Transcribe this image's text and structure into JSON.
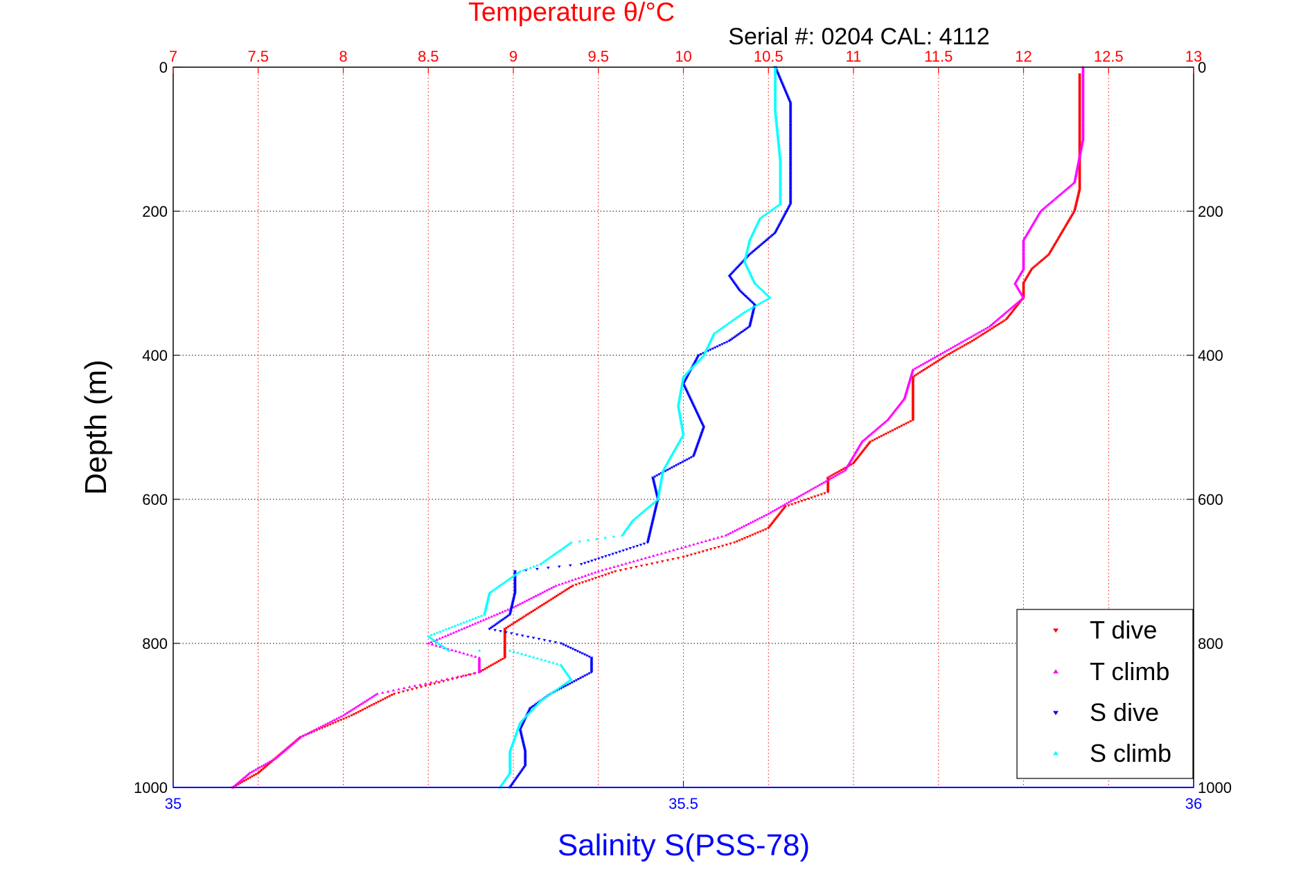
{
  "chart_data": {
    "type": "scatter",
    "title": "Temperature θ/°C",
    "subtitle": "Serial #: 0204  CAL: 4112",
    "ylabel": "Depth (m)",
    "xlabel": "Salinity S(PSS-78)",
    "ylim": [
      0,
      1000
    ],
    "y_reversed": true,
    "y_ticks": [
      0,
      200,
      400,
      600,
      800,
      1000
    ],
    "y_tick_labels": [
      "0",
      "200",
      "400",
      "600",
      "800",
      "1000"
    ],
    "temperature_axis": {
      "position": "top",
      "color": "#ff0000",
      "range": [
        7,
        13
      ],
      "ticks": [
        7,
        7.5,
        8,
        8.5,
        9,
        9.5,
        10,
        10.5,
        11,
        11.5,
        12,
        12.5,
        13
      ],
      "tick_labels": [
        "7",
        "7.5",
        "8",
        "8.5",
        "9",
        "9.5",
        "10",
        "10.5",
        "11",
        "11.5",
        "12",
        "12.5",
        "13"
      ]
    },
    "salinity_axis": {
      "position": "bottom",
      "color": "#0000ff",
      "range": [
        35,
        36
      ],
      "ticks": [
        35,
        35.5,
        36
      ],
      "tick_labels": [
        "35",
        "35.5",
        "36"
      ]
    },
    "grid": true,
    "legend_position": "bottom-right",
    "series": [
      {
        "name": "T dive",
        "axis": "temperature",
        "color": "#ff0000",
        "marker": "triangle-down",
        "points": [
          [
            12.33,
            10
          ],
          [
            12.33,
            100
          ],
          [
            12.33,
            170
          ],
          [
            12.3,
            200
          ],
          [
            12.25,
            220
          ],
          [
            12.15,
            260
          ],
          [
            12.05,
            280
          ],
          [
            12.0,
            300
          ],
          [
            12.0,
            320
          ],
          [
            11.9,
            350
          ],
          [
            11.7,
            380
          ],
          [
            11.55,
            400
          ],
          [
            11.35,
            430
          ],
          [
            11.35,
            490
          ],
          [
            11.1,
            520
          ],
          [
            11.0,
            550
          ],
          [
            10.85,
            570
          ],
          [
            10.85,
            590
          ],
          [
            10.6,
            610
          ],
          [
            10.5,
            640
          ],
          [
            10.3,
            660
          ],
          [
            10.0,
            680
          ],
          [
            9.6,
            700
          ],
          [
            9.35,
            720
          ],
          [
            9.15,
            750
          ],
          [
            8.95,
            780
          ],
          [
            8.95,
            800
          ],
          [
            8.95,
            820
          ],
          [
            8.8,
            840
          ],
          [
            8.3,
            870
          ],
          [
            8.05,
            900
          ],
          [
            7.75,
            930
          ],
          [
            7.6,
            960
          ],
          [
            7.5,
            980
          ],
          [
            7.35,
            1000
          ]
        ]
      },
      {
        "name": "T climb",
        "axis": "temperature",
        "color": "#ff00ff",
        "marker": "triangle-up",
        "points": [
          [
            12.35,
            0
          ],
          [
            12.35,
            100
          ],
          [
            12.3,
            160
          ],
          [
            12.1,
            200
          ],
          [
            12.0,
            240
          ],
          [
            12.0,
            280
          ],
          [
            11.95,
            300
          ],
          [
            12.0,
            320
          ],
          [
            11.8,
            360
          ],
          [
            11.5,
            400
          ],
          [
            11.35,
            420
          ],
          [
            11.3,
            460
          ],
          [
            11.2,
            490
          ],
          [
            11.05,
            520
          ],
          [
            10.95,
            560
          ],
          [
            10.8,
            580
          ],
          [
            10.5,
            620
          ],
          [
            10.25,
            650
          ],
          [
            9.8,
            680
          ],
          [
            9.5,
            700
          ],
          [
            9.25,
            720
          ],
          [
            9.0,
            750
          ],
          [
            8.6,
            790
          ],
          [
            8.5,
            800
          ],
          [
            8.8,
            820
          ],
          [
            8.8,
            840
          ],
          [
            8.2,
            870
          ],
          [
            8.0,
            900
          ],
          [
            7.75,
            930
          ],
          [
            7.6,
            960
          ],
          [
            7.45,
            980
          ],
          [
            7.35,
            1000
          ]
        ]
      },
      {
        "name": "S dive",
        "axis": "salinity",
        "color": "#0000ff",
        "marker": "triangle-down",
        "points": [
          [
            35.59,
            0
          ],
          [
            35.605,
            50
          ],
          [
            35.605,
            120
          ],
          [
            35.605,
            190
          ],
          [
            35.59,
            230
          ],
          [
            35.565,
            260
          ],
          [
            35.545,
            290
          ],
          [
            35.555,
            310
          ],
          [
            35.57,
            330
          ],
          [
            35.565,
            360
          ],
          [
            35.545,
            380
          ],
          [
            35.515,
            400
          ],
          [
            35.5,
            440
          ],
          [
            35.51,
            470
          ],
          [
            35.52,
            500
          ],
          [
            35.51,
            540
          ],
          [
            35.47,
            570
          ],
          [
            35.475,
            600
          ],
          [
            35.47,
            630
          ],
          [
            35.465,
            660
          ],
          [
            35.4,
            690
          ],
          [
            35.335,
            700
          ],
          [
            35.335,
            730
          ],
          [
            35.33,
            760
          ],
          [
            35.31,
            780
          ],
          [
            35.38,
            800
          ],
          [
            35.41,
            820
          ],
          [
            35.41,
            840
          ],
          [
            35.37,
            870
          ],
          [
            35.35,
            890
          ],
          [
            35.34,
            920
          ],
          [
            35.345,
            950
          ],
          [
            35.345,
            970
          ],
          [
            35.33,
            1000
          ]
        ]
      },
      {
        "name": "S climb",
        "axis": "salinity",
        "color": "#00ffff",
        "marker": "triangle-up",
        "points": [
          [
            35.59,
            0
          ],
          [
            35.59,
            60
          ],
          [
            35.595,
            130
          ],
          [
            35.595,
            190
          ],
          [
            35.575,
            210
          ],
          [
            35.565,
            240
          ],
          [
            35.56,
            270
          ],
          [
            35.57,
            300
          ],
          [
            35.585,
            320
          ],
          [
            35.56,
            340
          ],
          [
            35.53,
            370
          ],
          [
            35.52,
            400
          ],
          [
            35.5,
            430
          ],
          [
            35.495,
            470
          ],
          [
            35.5,
            510
          ],
          [
            35.48,
            560
          ],
          [
            35.475,
            600
          ],
          [
            35.45,
            630
          ],
          [
            35.44,
            650
          ],
          [
            35.39,
            660
          ],
          [
            35.36,
            690
          ],
          [
            35.34,
            700
          ],
          [
            35.31,
            730
          ],
          [
            35.305,
            760
          ],
          [
            35.25,
            790
          ],
          [
            35.27,
            810
          ],
          [
            35.33,
            810
          ],
          [
            35.38,
            830
          ],
          [
            35.39,
            850
          ],
          [
            35.36,
            880
          ],
          [
            35.34,
            910
          ],
          [
            35.33,
            950
          ],
          [
            35.33,
            980
          ],
          [
            35.32,
            1000
          ]
        ]
      }
    ]
  }
}
